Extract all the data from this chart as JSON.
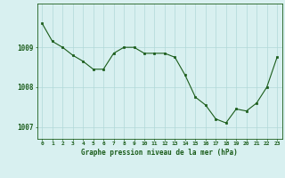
{
  "x": [
    0,
    1,
    2,
    3,
    4,
    5,
    6,
    7,
    8,
    9,
    10,
    11,
    12,
    13,
    14,
    15,
    16,
    17,
    18,
    19,
    20,
    21,
    22,
    23
  ],
  "y": [
    1009.6,
    1009.15,
    1009.0,
    1008.8,
    1008.65,
    1008.45,
    1008.45,
    1008.85,
    1009.0,
    1009.0,
    1008.85,
    1008.85,
    1008.85,
    1008.75,
    1008.3,
    1007.75,
    1007.55,
    1007.2,
    1007.1,
    1007.45,
    1007.4,
    1007.6,
    1008.0,
    1008.75
  ],
  "line_color": "#1a5c1a",
  "marker_color": "#1a5c1a",
  "bg_color": "#d8f0f0",
  "grid_color": "#b0d8d8",
  "xlabel": "Graphe pression niveau de la mer (hPa)",
  "xlabel_color": "#1a5c1a",
  "tick_color": "#1a5c1a",
  "ylim": [
    1006.7,
    1010.1
  ],
  "yticks": [
    1007,
    1008,
    1009
  ],
  "xlim": [
    -0.5,
    23.5
  ],
  "xticks": [
    0,
    1,
    2,
    3,
    4,
    5,
    6,
    7,
    8,
    9,
    10,
    11,
    12,
    13,
    14,
    15,
    16,
    17,
    18,
    19,
    20,
    21,
    22,
    23
  ],
  "xtick_labels": [
    "0",
    "1",
    "2",
    "3",
    "4",
    "5",
    "6",
    "7",
    "8",
    "9",
    "10",
    "11",
    "12",
    "13",
    "14",
    "15",
    "16",
    "17",
    "18",
    "19",
    "20",
    "21",
    "22",
    "23"
  ]
}
